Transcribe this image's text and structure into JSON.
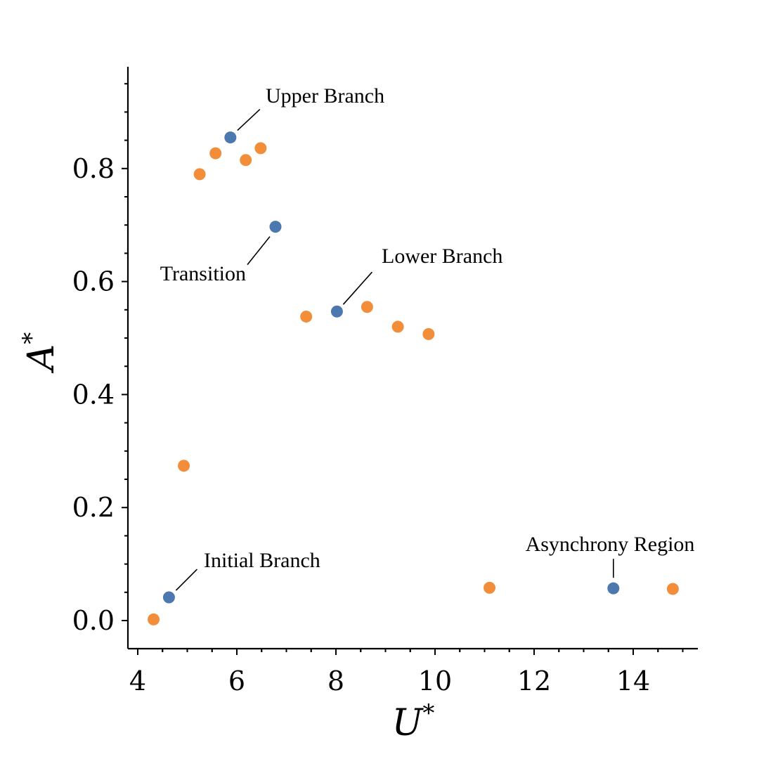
{
  "chart_data": {
    "type": "scatter",
    "xlabel": "U",
    "xlabel_sup": "*",
    "ylabel": "A",
    "ylabel_sup": "*",
    "xlim": [
      3.8,
      15.3
    ],
    "ylim": [
      -0.05,
      0.98
    ],
    "xticks": [
      4,
      6,
      8,
      10,
      12,
      14
    ],
    "xtick_labels": [
      "4",
      "6",
      "8",
      "10",
      "12",
      "14"
    ],
    "yticks": [
      0.0,
      0.2,
      0.4,
      0.6,
      0.8
    ],
    "ytick_labels": [
      "0.0",
      "0.2",
      "0.4",
      "0.6",
      "0.8"
    ],
    "grid": false,
    "colors": {
      "orange": "#F28E3A",
      "blue": "#4C78B0"
    },
    "series": [
      {
        "color": "orange",
        "points": [
          {
            "x": 4.32,
            "y": 0.002
          },
          {
            "x": 4.93,
            "y": 0.274
          },
          {
            "x": 5.25,
            "y": 0.79
          },
          {
            "x": 5.57,
            "y": 0.827
          },
          {
            "x": 6.18,
            "y": 0.815
          },
          {
            "x": 6.48,
            "y": 0.836
          },
          {
            "x": 7.4,
            "y": 0.538
          },
          {
            "x": 8.63,
            "y": 0.555
          },
          {
            "x": 9.25,
            "y": 0.52
          },
          {
            "x": 9.87,
            "y": 0.507
          },
          {
            "x": 11.1,
            "y": 0.058
          },
          {
            "x": 14.8,
            "y": 0.056
          }
        ]
      },
      {
        "color": "blue",
        "points": [
          {
            "x": 4.63,
            "y": 0.041
          },
          {
            "x": 5.87,
            "y": 0.855
          },
          {
            "x": 6.78,
            "y": 0.697
          },
          {
            "x": 8.02,
            "y": 0.547
          },
          {
            "x": 13.6,
            "y": 0.057
          }
        ]
      }
    ],
    "annotations": [
      {
        "text": "Upper Branch",
        "point": {
          "x": 5.87,
          "y": 0.855
        }
      },
      {
        "text": "Transition",
        "point": {
          "x": 6.78,
          "y": 0.697
        }
      },
      {
        "text": "Lower Branch",
        "point": {
          "x": 8.02,
          "y": 0.547
        }
      },
      {
        "text": "Initial Branch",
        "point": {
          "x": 4.63,
          "y": 0.041
        }
      },
      {
        "text": "Asynchrony Region",
        "point": {
          "x": 13.6,
          "y": 0.057
        }
      }
    ]
  }
}
